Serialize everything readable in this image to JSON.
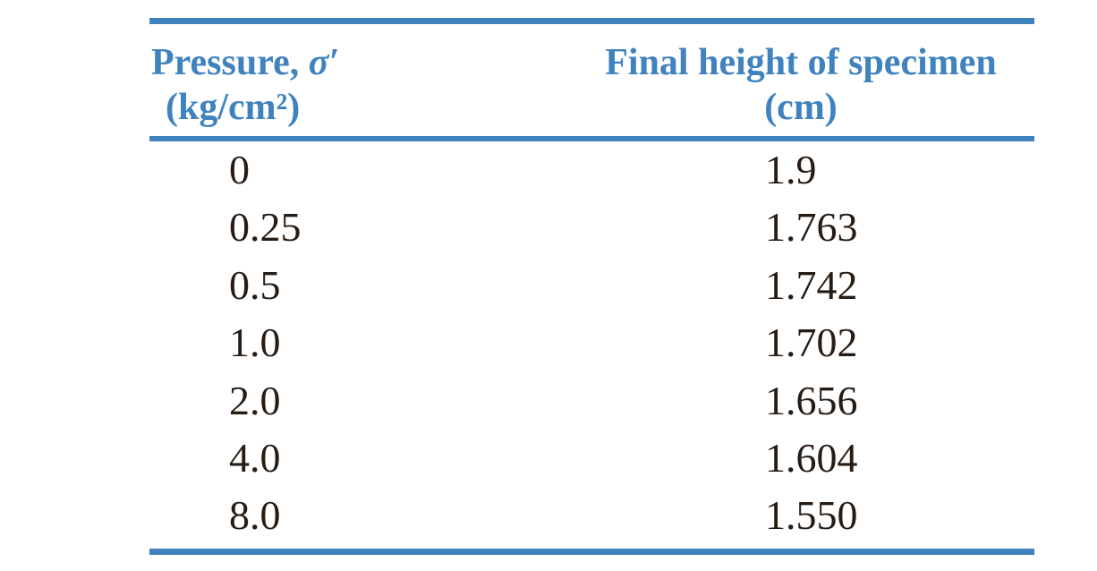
{
  "colors": {
    "accent_blue": "#3f82be",
    "text_dark": "#271c14",
    "background": "#ffffff"
  },
  "table": {
    "header": {
      "col1": {
        "title_prefix": "Pressure, ",
        "symbol": "σ′",
        "unit": "(kg/cm²)"
      },
      "col2": {
        "title": "Final height of specimen",
        "unit": "(cm)"
      }
    },
    "rows": [
      {
        "pressure": "0",
        "height": "1.9"
      },
      {
        "pressure": "0.25",
        "height": "1.763"
      },
      {
        "pressure": "0.5",
        "height": "1.742"
      },
      {
        "pressure": "1.0",
        "height": "1.702"
      },
      {
        "pressure": "2.0",
        "height": "1.656"
      },
      {
        "pressure": "4.0",
        "height": "1.604"
      },
      {
        "pressure": "8.0",
        "height": "1.550"
      }
    ]
  },
  "chart_data": {
    "type": "table",
    "title": "",
    "columns": [
      "Pressure, σ′ (kg/cm²)",
      "Final height of specimen (cm)"
    ],
    "pressure_kg_cm2": [
      0,
      0.25,
      0.5,
      1.0,
      2.0,
      4.0,
      8.0
    ],
    "final_height_cm": [
      1.9,
      1.763,
      1.742,
      1.702,
      1.656,
      1.604,
      1.55
    ]
  }
}
